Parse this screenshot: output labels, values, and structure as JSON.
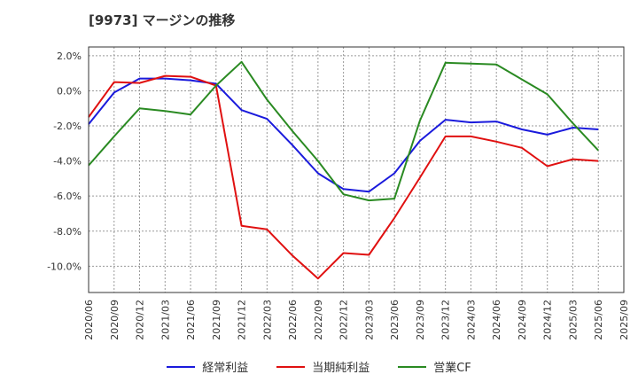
{
  "title": "[9973]  マージンの推移",
  "chart_data": {
    "type": "line",
    "x": [
      "2020/06",
      "2020/09",
      "2020/12",
      "2021/03",
      "2021/06",
      "2021/09",
      "2021/12",
      "2022/03",
      "2022/06",
      "2022/09",
      "2022/12",
      "2023/03",
      "2023/06",
      "2023/09",
      "2023/12",
      "2024/03",
      "2024/06",
      "2024/09",
      "2024/12",
      "2025/03",
      "2025/06",
      "2025/09"
    ],
    "yticks": [
      2.0,
      0.0,
      -2.0,
      -4.0,
      -6.0,
      -8.0,
      -10.0
    ],
    "ytick_labels": [
      "2.0%",
      "0.0%",
      "-2.0%",
      "-4.0%",
      "-6.0%",
      "-8.0%",
      "-10.0%"
    ],
    "ylim": [
      -11.5,
      2.5
    ],
    "grid": true,
    "legend_position": "bottom",
    "series": [
      {
        "name": "経常利益",
        "color": "#1a1adc",
        "values": [
          -1.9,
          -0.1,
          0.7,
          0.7,
          0.6,
          0.4,
          -1.1,
          -1.6,
          -3.1,
          -4.7,
          -5.6,
          -5.75,
          -4.7,
          -2.85,
          -1.65,
          -1.8,
          -1.75,
          -2.2,
          -2.5,
          -2.1,
          -2.2,
          null
        ]
      },
      {
        "name": "当期純利益",
        "color": "#e01010",
        "values": [
          -1.5,
          0.5,
          0.45,
          0.85,
          0.8,
          0.3,
          -7.7,
          -7.9,
          -9.4,
          -10.7,
          -9.25,
          -9.35,
          -7.25,
          -4.95,
          -2.6,
          -2.6,
          -2.9,
          -3.25,
          -4.3,
          -3.9,
          -4.0,
          null
        ]
      },
      {
        "name": "営業CF",
        "color": "#2a8a22",
        "values": [
          -4.25,
          -2.6,
          -1.0,
          -1.15,
          -1.35,
          0.3,
          1.65,
          -0.5,
          -2.3,
          -4.0,
          -5.9,
          -6.25,
          -6.15,
          -1.7,
          1.6,
          1.55,
          1.5,
          0.65,
          -0.2,
          -1.85,
          -3.4,
          null
        ]
      }
    ]
  }
}
